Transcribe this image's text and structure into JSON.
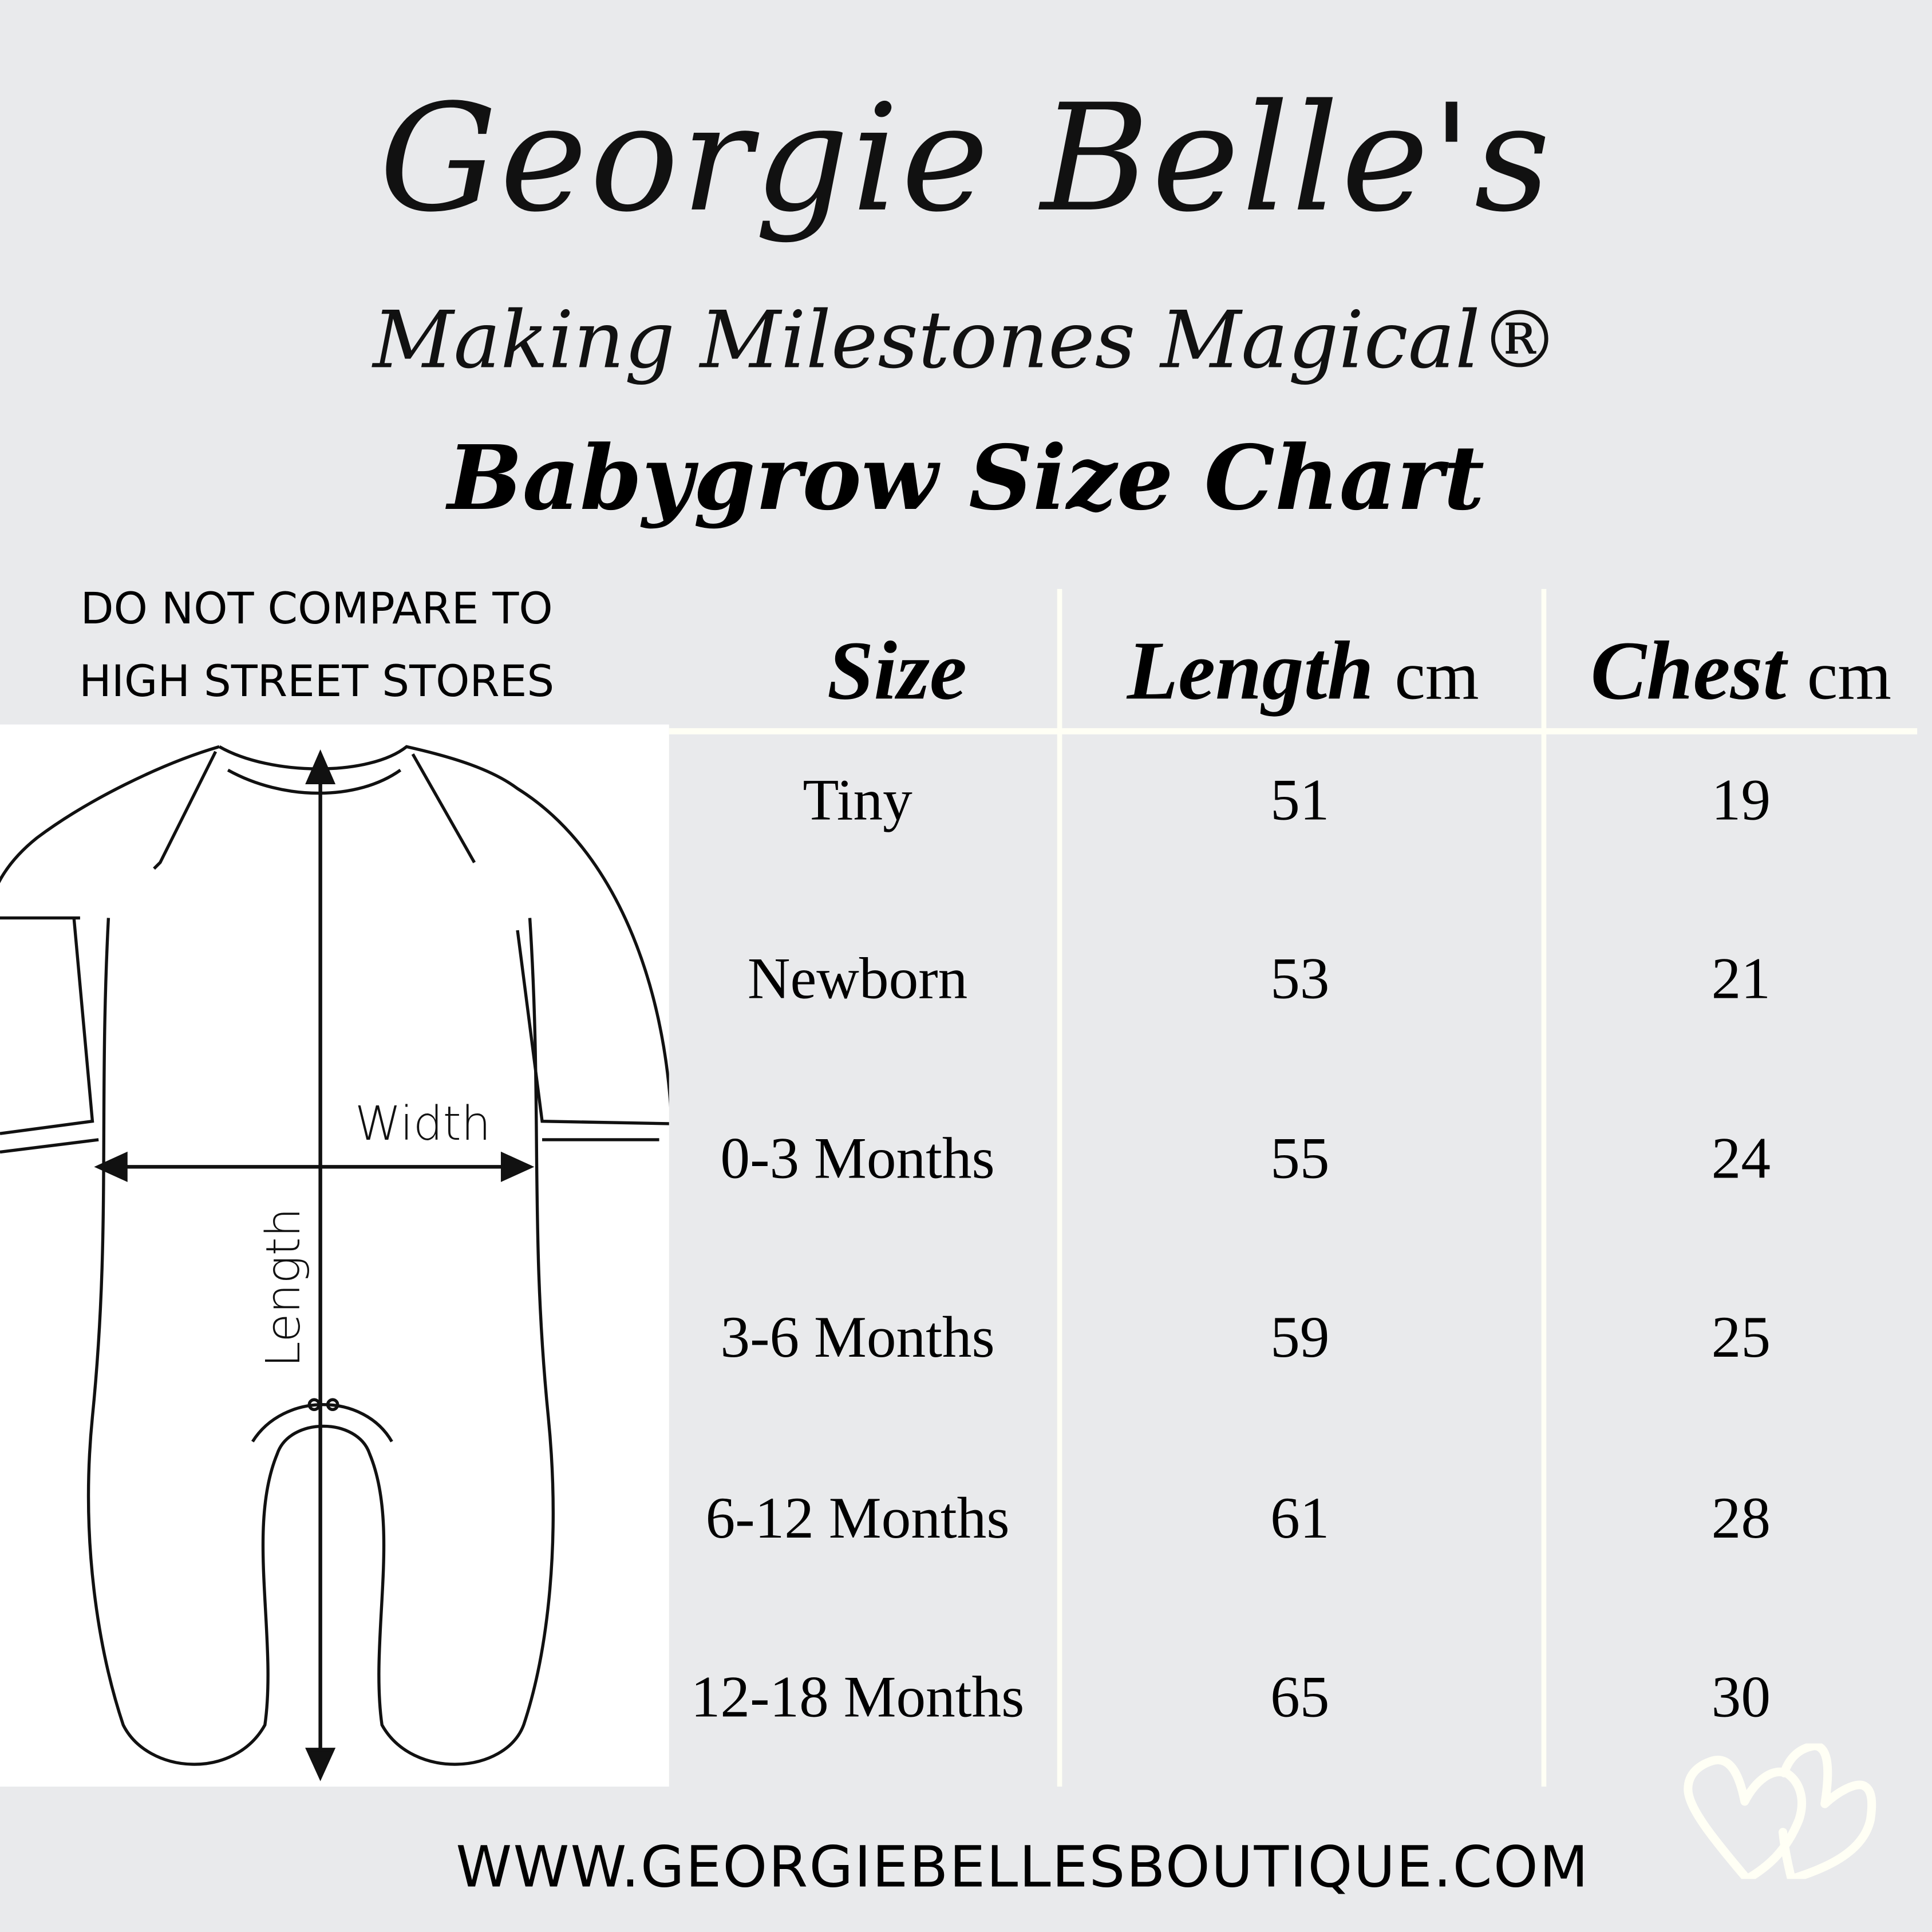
{
  "brand": {
    "name": "Georgie Belle's",
    "tagline": "Making Milestones Magical®"
  },
  "title": "Babygrow Size Chart",
  "note": [
    "DO NOT COMPARE TO",
    "HIGH STREET STORES"
  ],
  "diagram": {
    "width_label": "Width",
    "length_label": "Length"
  },
  "table": {
    "headers": [
      {
        "label": "Size",
        "unit": ""
      },
      {
        "label": "Length",
        "unit": "cm"
      },
      {
        "label": "Chest",
        "unit": "cm"
      }
    ],
    "rows": [
      [
        "Tiny",
        "51",
        "19"
      ],
      [
        "Newborn",
        "53",
        "21"
      ],
      [
        "0-3 Months",
        "55",
        "24"
      ],
      [
        "3-6 Months",
        "59",
        "25"
      ],
      [
        "6-12 Months",
        "61",
        "28"
      ],
      [
        "12-18 Months",
        "65",
        "30"
      ]
    ]
  },
  "website": "WWW.GEORGIEBELLESBOUTIQUE.COM",
  "colors": {
    "background": "#e9eaec",
    "divider": "#fffff5",
    "text": "#000000"
  },
  "icons": [
    "heart-icon",
    "double-heart-icon",
    "arrow-icon"
  ]
}
